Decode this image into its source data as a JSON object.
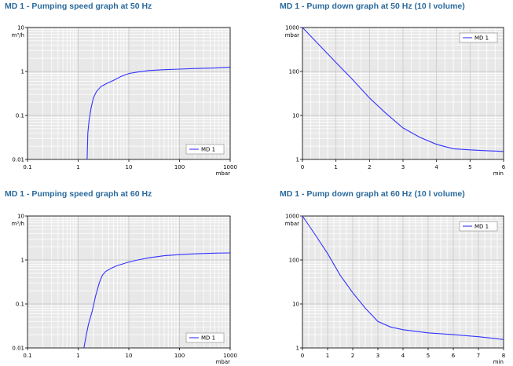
{
  "chart_data": [
    {
      "type": "line",
      "title": "MD 1 - Pumping speed graph at 50 Hz",
      "ylabel": "m³/h",
      "xlabel": "mbar",
      "xscale": "log",
      "yscale": "log",
      "xlim": [
        0.1,
        1000
      ],
      "ylim": [
        0.01,
        10
      ],
      "xticks": [
        "0.1",
        "1",
        "10",
        "100",
        "1000"
      ],
      "yticks": [
        "0.01",
        "0.1",
        "1",
        "10"
      ],
      "grid": true,
      "legend": "bottom-right",
      "series": [
        {
          "name": "MD 1",
          "color": "#3333ff",
          "points": [
            [
              1.5,
              0.01
            ],
            [
              1.55,
              0.04
            ],
            [
              1.65,
              0.08
            ],
            [
              1.8,
              0.15
            ],
            [
              2.0,
              0.25
            ],
            [
              2.3,
              0.35
            ],
            [
              2.8,
              0.45
            ],
            [
              3.5,
              0.52
            ],
            [
              5,
              0.63
            ],
            [
              7,
              0.77
            ],
            [
              10,
              0.9
            ],
            [
              15,
              0.97
            ],
            [
              25,
              1.05
            ],
            [
              50,
              1.1
            ],
            [
              100,
              1.13
            ],
            [
              200,
              1.17
            ],
            [
              500,
              1.2
            ],
            [
              1000,
              1.25
            ]
          ]
        }
      ]
    },
    {
      "type": "line",
      "title": "MD 1 - Pump down graph at 50 Hz (10 l volume)",
      "ylabel": "mbar",
      "xlabel": "min",
      "xscale": "linear",
      "yscale": "log",
      "xlim": [
        0,
        6
      ],
      "ylim": [
        1,
        1000
      ],
      "xticks": [
        "0",
        "1",
        "2",
        "3",
        "4",
        "5",
        "6"
      ],
      "yticks": [
        "1",
        "10",
        "100",
        "1000"
      ],
      "grid": true,
      "legend": "top-right",
      "series": [
        {
          "name": "MD 1",
          "color": "#3333ff",
          "points": [
            [
              0,
              1000
            ],
            [
              0.5,
              400
            ],
            [
              1,
              160
            ],
            [
              1.5,
              65
            ],
            [
              2,
              25
            ],
            [
              2.5,
              11
            ],
            [
              3,
              5.2
            ],
            [
              3.5,
              3.2
            ],
            [
              4,
              2.2
            ],
            [
              4.5,
              1.75
            ],
            [
              5,
              1.65
            ],
            [
              5.5,
              1.58
            ],
            [
              6,
              1.52
            ]
          ]
        }
      ]
    },
    {
      "type": "line",
      "title": "MD 1 - Pumping speed graph at 60 Hz",
      "ylabel": "m³/h",
      "xlabel": "mbar",
      "xscale": "log",
      "yscale": "log",
      "xlim": [
        0.1,
        1000
      ],
      "ylim": [
        0.01,
        10
      ],
      "xticks": [
        "0.1",
        "1",
        "10",
        "100",
        "1000"
      ],
      "yticks": [
        "0.01",
        "0.1",
        "1",
        "10"
      ],
      "grid": true,
      "legend": "bottom-right",
      "series": [
        {
          "name": "MD 1",
          "color": "#3333ff",
          "points": [
            [
              1.3,
              0.01
            ],
            [
              1.45,
              0.02
            ],
            [
              1.6,
              0.035
            ],
            [
              1.9,
              0.07
            ],
            [
              2.2,
              0.15
            ],
            [
              2.6,
              0.3
            ],
            [
              3.0,
              0.45
            ],
            [
              3.5,
              0.55
            ],
            [
              4.5,
              0.65
            ],
            [
              6,
              0.75
            ],
            [
              10,
              0.9
            ],
            [
              15,
              1.0
            ],
            [
              25,
              1.12
            ],
            [
              50,
              1.25
            ],
            [
              100,
              1.32
            ],
            [
              200,
              1.38
            ],
            [
              500,
              1.43
            ],
            [
              1000,
              1.45
            ]
          ]
        }
      ]
    },
    {
      "type": "line",
      "title": "MD 1 - Pump down graph at 60 Hz (10 l volume)",
      "ylabel": "mbar",
      "xlabel": "min",
      "xscale": "linear",
      "yscale": "log",
      "xlim": [
        0,
        8
      ],
      "ylim": [
        1,
        1000
      ],
      "xticks": [
        "0",
        "1",
        "2",
        "3",
        "4",
        "5",
        "6",
        "7",
        "8"
      ],
      "yticks": [
        "1",
        "10",
        "100",
        "1000"
      ],
      "grid": true,
      "legend": "top-right",
      "series": [
        {
          "name": "MD 1",
          "color": "#3333ff",
          "points": [
            [
              0,
              1000
            ],
            [
              0.5,
              380
            ],
            [
              1,
              140
            ],
            [
              1.5,
              45
            ],
            [
              2,
              18
            ],
            [
              2.5,
              8
            ],
            [
              3,
              4
            ],
            [
              3.5,
              3
            ],
            [
              4,
              2.6
            ],
            [
              5,
              2.2
            ],
            [
              6,
              2.0
            ],
            [
              7,
              1.8
            ],
            [
              8,
              1.55
            ]
          ]
        }
      ]
    }
  ]
}
